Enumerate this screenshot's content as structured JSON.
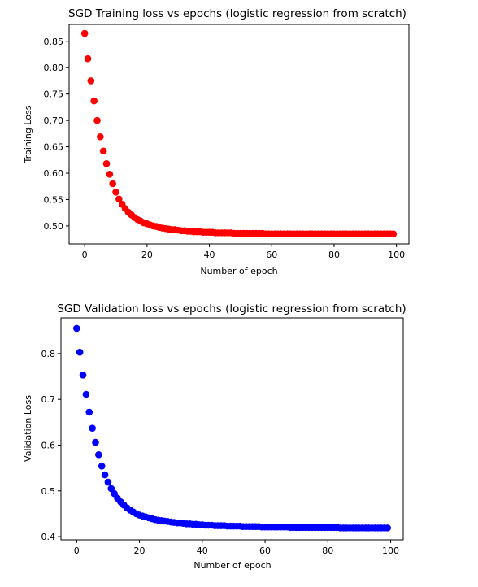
{
  "chart_data": [
    {
      "type": "scatter",
      "title": "SGD Training loss vs epochs (logistic regression from scratch)",
      "xlabel": "Number of epoch",
      "ylabel": "Training Loss",
      "xlim": [
        -5,
        104
      ],
      "ylim": [
        0.466,
        0.882
      ],
      "xticks": [
        0,
        20,
        40,
        60,
        80,
        100
      ],
      "yticks": [
        0.5,
        0.55,
        0.6,
        0.65,
        0.7,
        0.75,
        0.8,
        0.85
      ],
      "xtick_labels": [
        "0",
        "20",
        "40",
        "60",
        "80",
        "100"
      ],
      "ytick_labels": [
        "0.50",
        "0.55",
        "0.60",
        "0.65",
        "0.70",
        "0.75",
        "0.80",
        "0.85"
      ],
      "color": "#ff0000",
      "series": [
        {
          "x": [
            0,
            1,
            2,
            3,
            4,
            5,
            6,
            7,
            8,
            9,
            10,
            11,
            12,
            13,
            14,
            15,
            16,
            17,
            18,
            19,
            20,
            21,
            22,
            23,
            24,
            25,
            26,
            27,
            28,
            29,
            30,
            31,
            32,
            33,
            34,
            35,
            36,
            37,
            38,
            39,
            40,
            41,
            42,
            43,
            44,
            45,
            46,
            47,
            48,
            49,
            50,
            51,
            52,
            53,
            54,
            55,
            56,
            57,
            58,
            59,
            60,
            61,
            62,
            63,
            64,
            65,
            66,
            67,
            68,
            69,
            70,
            71,
            72,
            73,
            74,
            75,
            76,
            77,
            78,
            79,
            80,
            81,
            82,
            83,
            84,
            85,
            86,
            87,
            88,
            89,
            90,
            91,
            92,
            93,
            94,
            95,
            96,
            97,
            98,
            99
          ],
          "y": [
            0.865,
            0.817,
            0.775,
            0.737,
            0.7,
            0.669,
            0.642,
            0.618,
            0.598,
            0.58,
            0.564,
            0.551,
            0.541,
            0.533,
            0.526,
            0.521,
            0.516,
            0.512,
            0.509,
            0.506,
            0.504,
            0.502,
            0.5,
            0.499,
            0.497,
            0.496,
            0.495,
            0.494,
            0.493,
            0.493,
            0.492,
            0.491,
            0.491,
            0.49,
            0.49,
            0.489,
            0.489,
            0.489,
            0.488,
            0.488,
            0.488,
            0.488,
            0.487,
            0.487,
            0.487,
            0.487,
            0.487,
            0.487,
            0.486,
            0.486,
            0.486,
            0.486,
            0.486,
            0.486,
            0.486,
            0.486,
            0.486,
            0.486,
            0.485,
            0.485,
            0.485,
            0.485,
            0.485,
            0.485,
            0.485,
            0.485,
            0.485,
            0.485,
            0.485,
            0.485,
            0.485,
            0.485,
            0.485,
            0.485,
            0.485,
            0.485,
            0.485,
            0.485,
            0.485,
            0.485,
            0.485,
            0.485,
            0.485,
            0.485,
            0.485,
            0.485,
            0.485,
            0.485,
            0.485,
            0.485,
            0.485,
            0.485,
            0.485,
            0.485,
            0.485,
            0.485,
            0.485,
            0.485,
            0.485,
            0.485
          ]
        }
      ]
    },
    {
      "type": "scatter",
      "title": "SGD Validation loss vs epochs (logistic regression from scratch)",
      "xlabel": "Number of epoch",
      "ylabel": "Validation Loss",
      "xlim": [
        -5,
        104
      ],
      "ylim": [
        0.393,
        0.878
      ],
      "xticks": [
        0,
        20,
        40,
        60,
        80,
        100
      ],
      "yticks": [
        0.4,
        0.5,
        0.6,
        0.7,
        0.8
      ],
      "xtick_labels": [
        "0",
        "20",
        "40",
        "60",
        "80",
        "100"
      ],
      "ytick_labels": [
        "0.4",
        "0.5",
        "0.6",
        "0.7",
        "0.8"
      ],
      "color": "#0000ff",
      "series": [
        {
          "x": [
            0,
            1,
            2,
            3,
            4,
            5,
            6,
            7,
            8,
            9,
            10,
            11,
            12,
            13,
            14,
            15,
            16,
            17,
            18,
            19,
            20,
            21,
            22,
            23,
            24,
            25,
            26,
            27,
            28,
            29,
            30,
            31,
            32,
            33,
            34,
            35,
            36,
            37,
            38,
            39,
            40,
            41,
            42,
            43,
            44,
            45,
            46,
            47,
            48,
            49,
            50,
            51,
            52,
            53,
            54,
            55,
            56,
            57,
            58,
            59,
            60,
            61,
            62,
            63,
            64,
            65,
            66,
            67,
            68,
            69,
            70,
            71,
            72,
            73,
            74,
            75,
            76,
            77,
            78,
            79,
            80,
            81,
            82,
            83,
            84,
            85,
            86,
            87,
            88,
            89,
            90,
            91,
            92,
            93,
            94,
            95,
            96,
            97,
            98,
            99
          ],
          "y": [
            0.855,
            0.803,
            0.753,
            0.711,
            0.672,
            0.637,
            0.606,
            0.579,
            0.554,
            0.535,
            0.519,
            0.505,
            0.494,
            0.484,
            0.476,
            0.469,
            0.463,
            0.458,
            0.454,
            0.45,
            0.447,
            0.445,
            0.443,
            0.441,
            0.439,
            0.437,
            0.436,
            0.435,
            0.434,
            0.433,
            0.432,
            0.431,
            0.43,
            0.43,
            0.429,
            0.428,
            0.428,
            0.427,
            0.427,
            0.426,
            0.426,
            0.425,
            0.425,
            0.425,
            0.424,
            0.424,
            0.424,
            0.424,
            0.423,
            0.423,
            0.423,
            0.423,
            0.423,
            0.422,
            0.422,
            0.422,
            0.422,
            0.422,
            0.422,
            0.421,
            0.421,
            0.421,
            0.421,
            0.421,
            0.421,
            0.421,
            0.421,
            0.421,
            0.42,
            0.42,
            0.42,
            0.42,
            0.42,
            0.42,
            0.42,
            0.42,
            0.42,
            0.42,
            0.42,
            0.42,
            0.42,
            0.42,
            0.42,
            0.42,
            0.419,
            0.419,
            0.419,
            0.419,
            0.419,
            0.419,
            0.419,
            0.419,
            0.419,
            0.419,
            0.419,
            0.419,
            0.419,
            0.419,
            0.419,
            0.419
          ]
        }
      ]
    }
  ]
}
